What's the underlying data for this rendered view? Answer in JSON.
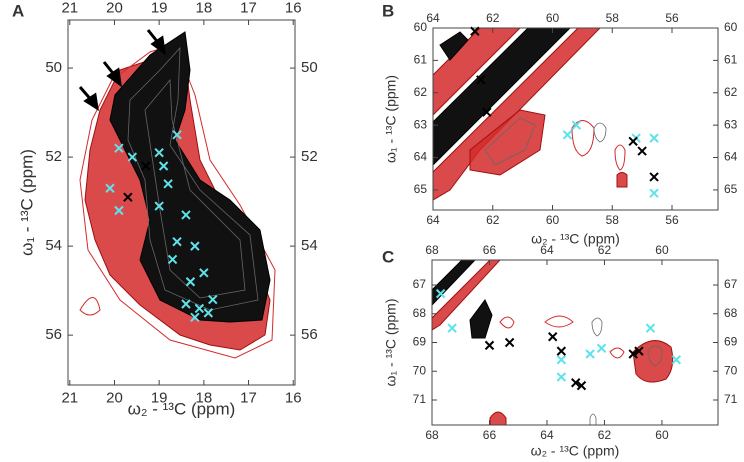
{
  "chart_data": [
    {
      "type": "scatter",
      "panel": "A",
      "xlabel": "ω₂ - ¹³C  (ppm)",
      "ylabel": "ω₁ - ¹³C  (ppm)",
      "xlim": [
        21.04,
        15.96
      ],
      "ylim": [
        57.12,
        48.92
      ],
      "xticks": [
        21,
        20,
        19,
        18,
        17,
        16
      ],
      "yticks": [
        50,
        52,
        54,
        56
      ],
      "series": [
        {
          "color": "#5fe3ea",
          "x": [
            19.9,
            19.6,
            20.1,
            19.9,
            19.0,
            18.9,
            18.6,
            18.8,
            18.4,
            18.6,
            18.2,
            18.7,
            18.3,
            18.0,
            18.4,
            18.1,
            17.8,
            18.2,
            17.9,
            19.0
          ],
          "y": [
            51.8,
            52.0,
            52.7,
            53.2,
            51.9,
            52.2,
            51.5,
            52.6,
            53.3,
            53.9,
            54.0,
            54.3,
            54.8,
            54.6,
            55.3,
            55.4,
            55.2,
            55.6,
            55.5,
            53.1
          ]
        },
        {
          "color": "#000000",
          "x": [
            19.7,
            19.3
          ],
          "y": [
            52.9,
            52.2
          ]
        }
      ]
    },
    {
      "type": "scatter",
      "panel": "B",
      "xlabel": "ω₂ - ¹³C  (ppm)",
      "ylabel": "ω₁ - ¹³C  (ppm)",
      "xlim": [
        64,
        54.46
      ],
      "ylim": [
        65.62,
        60
      ],
      "xticks": [
        64,
        62,
        60,
        58,
        56
      ],
      "yticks": [
        60,
        61,
        62,
        63,
        64,
        65
      ],
      "series": [
        {
          "color": "#5fe3ea",
          "x": [
            59.2,
            57.2,
            56.6,
            56.6,
            59.5
          ],
          "y": [
            63.0,
            63.4,
            63.4,
            65.1,
            63.3
          ]
        },
        {
          "color": "#000000",
          "x": [
            62.6,
            62.4,
            62.2,
            57.3,
            57.0,
            56.6
          ],
          "y": [
            60.1,
            61.6,
            62.6,
            63.5,
            63.8,
            64.6
          ]
        }
      ]
    },
    {
      "type": "scatter",
      "panel": "C",
      "xlabel": "ω₂ - ¹³C  (ppm)",
      "ylabel": "ω₁ - ¹³C  (ppm)",
      "xlim": [
        68,
        58.05
      ],
      "ylim": [
        71.87,
        66.13
      ],
      "xticks": [
        68,
        66,
        64,
        62,
        60
      ],
      "yticks": [
        67,
        68,
        69,
        70,
        71
      ],
      "series": [
        {
          "color": "#5fe3ea",
          "x": [
            67.7,
            67.3,
            63.5,
            63.5,
            62.5,
            62.1,
            60.4,
            59.5
          ],
          "y": [
            67.3,
            68.5,
            69.6,
            70.2,
            69.4,
            69.2,
            68.5,
            69.6
          ]
        },
        {
          "color": "#000000",
          "x": [
            66.0,
            65.3,
            63.8,
            63.5,
            63.0,
            62.8,
            61.0,
            60.8
          ],
          "y": [
            69.1,
            69.0,
            68.8,
            69.3,
            70.4,
            70.5,
            69.4,
            69.3
          ]
        }
      ]
    }
  ]
}
